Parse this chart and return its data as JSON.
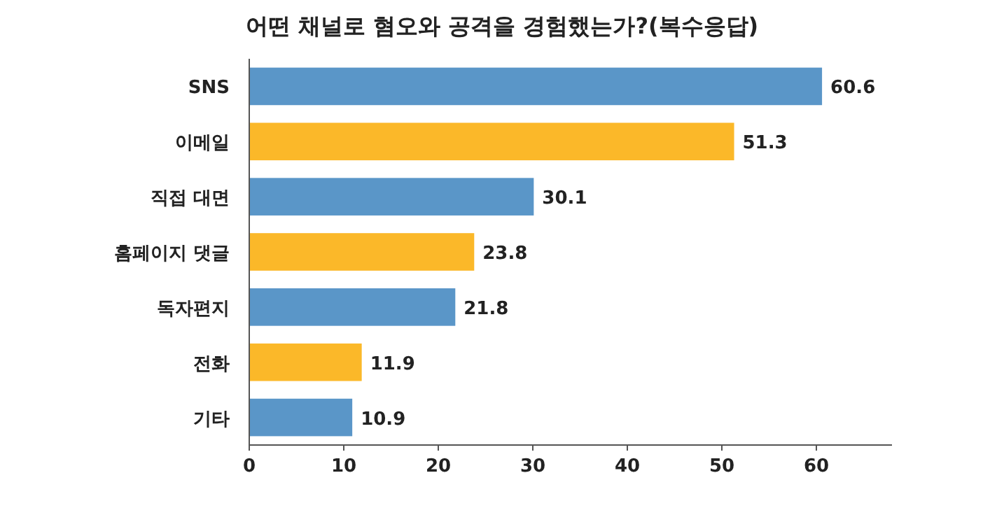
{
  "chart_data": {
    "type": "bar",
    "orientation": "horizontal",
    "title": "어떤 채널로 혐오와 공격을 경험했는가?(복수응답)",
    "categories": [
      "SNS",
      "이메일",
      "직접 대면",
      "홈페이지 댓글",
      "독자편지",
      "전화",
      "기타"
    ],
    "values": [
      60.6,
      51.3,
      30.1,
      23.8,
      21.8,
      11.9,
      10.9
    ],
    "colors": [
      "#5a96c8",
      "#fbb829",
      "#5a96c8",
      "#fbb829",
      "#5a96c8",
      "#fbb829",
      "#5a96c8"
    ],
    "xlim": [
      0,
      68
    ],
    "xticks": [
      0,
      10,
      20,
      30,
      40,
      50,
      60
    ],
    "grid": false,
    "data_labels": true
  }
}
